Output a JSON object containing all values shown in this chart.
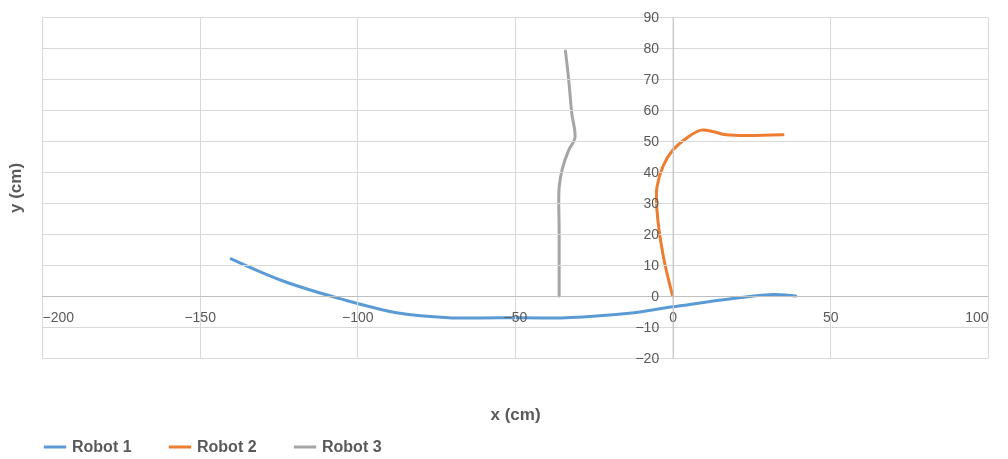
{
  "chart_data": {
    "type": "line",
    "xlabel": "x (cm)",
    "ylabel": "y (cm)",
    "xlim": [
      -200,
      100
    ],
    "ylim": [
      -20,
      90
    ],
    "xticks": [
      -200,
      -150,
      -100,
      -50,
      0,
      50,
      100
    ],
    "yticks": [
      -20,
      -10,
      0,
      10,
      20,
      30,
      40,
      50,
      60,
      70,
      80,
      90
    ],
    "grid": true,
    "legend": "bottom",
    "marker": "none",
    "line_style": "solid",
    "series": [
      {
        "name": "Robot 1",
        "color": "#5b9bd5",
        "x": [
          -140,
          -124,
          -105,
          -87,
          -71,
          -55,
          -34,
          -13,
          0,
          32,
          39
        ],
        "values": [
          12,
          5,
          -1,
          -5.5,
          -7,
          -7,
          -7,
          -5.5,
          -3.5,
          0.5,
          0
        ]
      },
      {
        "name": "Robot 2",
        "color": "#ed7d31",
        "x": [
          0,
          -3,
          -5,
          -5,
          -3,
          0,
          4.5,
          9,
          13,
          17,
          35
        ],
        "values": [
          0,
          13,
          28,
          35,
          42,
          47,
          51,
          53.5,
          53,
          52,
          52
        ]
      },
      {
        "name": "Robot 3",
        "color": "#a5a5a5",
        "x": [
          -36,
          -36,
          -36,
          -35,
          -33,
          -31,
          -32,
          -33,
          -34
        ],
        "values": [
          0,
          21,
          35,
          41,
          47,
          51,
          59,
          70,
          79
        ]
      }
    ]
  }
}
